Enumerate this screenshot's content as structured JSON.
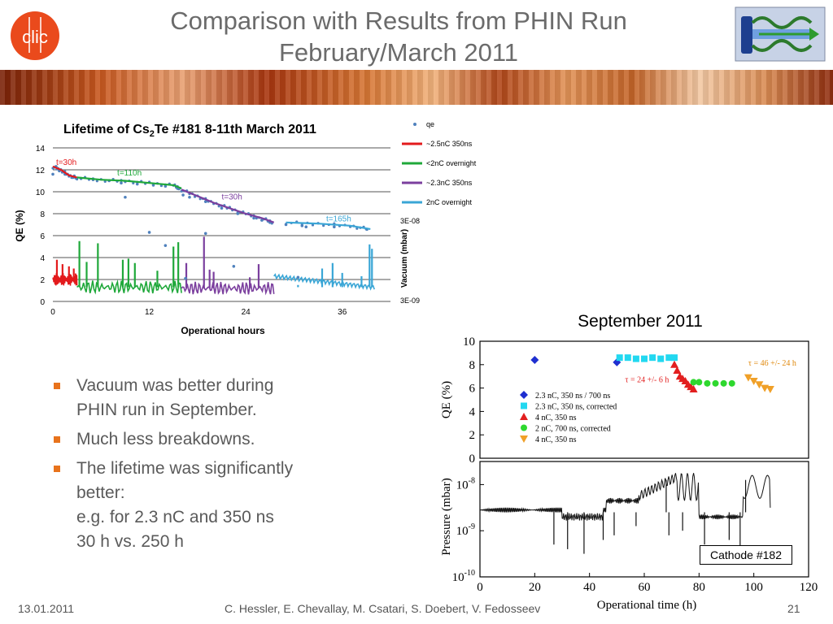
{
  "slide": {
    "title_line1": "Comparison with Results from PHIN Run",
    "title_line2": "February/March 2011",
    "logo_text": "clic",
    "date": "13.01.2011",
    "authors": "C. Hessler, E. Chevallay, M. Csatari, S. Doebert, V. Fedosseev",
    "page": "21",
    "september_label": "September 2011",
    "cathode_label": "Cathode #182"
  },
  "bullets": [
    {
      "lines": [
        "Vacuum was better during",
        "PHIN run in September."
      ]
    },
    {
      "lines": [
        "Much less breakdowns."
      ]
    },
    {
      "lines": [
        "The lifetime was significantly",
        "better:",
        "e.g. for 2.3 nC and 350 ns",
        "30 h vs. 250 h"
      ]
    }
  ],
  "colors": {
    "orange_accent": "#e8731c",
    "title_grey": "#6b6b6b",
    "qe_blue": "#4f81bd",
    "red": "#e31a1c",
    "green": "#1fa83a",
    "purple": "#7b3f9e",
    "cyan": "#3aa6d6"
  },
  "chart_data": [
    {
      "type": "line",
      "title_prefix": "Lifetime of Cs",
      "title_sub": "2",
      "title_suffix": "Te #181 8-11th March 2011",
      "xlabel": "Operational hours",
      "ylabel": "QE (%)",
      "y2label": "Vacuum (mbar)",
      "xlim": [
        0,
        42
      ],
      "ylim": [
        0,
        14
      ],
      "x_ticks": [
        "0",
        "12",
        "24",
        "36"
      ],
      "y_ticks": [
        "0",
        "2",
        "4",
        "6",
        "8",
        "10",
        "12",
        "14"
      ],
      "y2_ticks": [
        "3E-08",
        "3E-09"
      ],
      "legend": [
        "qe",
        "~2.5nC 350ns",
        "<2nC overnight",
        "~2.3nC 350ns",
        "2nC overnight"
      ],
      "legend_position": "right",
      "annotations": [
        "t=30h",
        "t=110h",
        "t=30h",
        "t=165h"
      ],
      "series": [
        {
          "name": "qe",
          "points": [
            [
              0,
              11.6
            ],
            [
              0.4,
              12.3
            ],
            [
              0.8,
              11.9
            ],
            [
              1.5,
              11.6
            ],
            [
              2.5,
              11.3
            ],
            [
              3.5,
              11.2
            ],
            [
              5,
              11.1
            ],
            [
              7,
              11.0
            ],
            [
              8.5,
              10.8
            ],
            [
              9,
              9.5
            ],
            [
              10.5,
              10.7
            ],
            [
              12.5,
              10.6
            ],
            [
              14,
              10.5
            ],
            [
              15.5,
              10.3
            ],
            [
              16.2,
              9.7
            ],
            [
              17,
              9.5
            ],
            [
              19,
              9.1
            ],
            [
              21,
              8.5
            ],
            [
              23,
              8.0
            ],
            [
              25,
              7.6
            ],
            [
              26,
              7.4
            ],
            [
              27,
              7.2
            ],
            [
              29,
              7.0
            ],
            [
              31,
              6.9
            ],
            [
              35,
              6.8
            ],
            [
              39,
              6.6
            ],
            [
              12,
              6.3
            ],
            [
              14,
              5.1
            ],
            [
              16.5,
              2.1
            ],
            [
              19,
              6.2
            ],
            [
              22.5,
              3.2
            ],
            [
              30.5,
              2.2
            ],
            [
              31.5,
              6.8
            ]
          ]
        },
        {
          "name": "~2.5nC 350ns",
          "points": [
            [
              0,
              12.3
            ],
            [
              1,
              12.0
            ],
            [
              2,
              11.5
            ],
            [
              3,
              11.3
            ]
          ]
        },
        {
          "name": "<2nC overnight",
          "points": [
            [
              3,
              11.3
            ],
            [
              6,
              11.1
            ],
            [
              9,
              11.0
            ],
            [
              12,
              10.8
            ],
            [
              15,
              10.6
            ],
            [
              16,
              10.3
            ]
          ]
        },
        {
          "name": "~2.3nC 350ns",
          "points": [
            [
              16,
              10.2
            ],
            [
              18,
              9.6
            ],
            [
              20,
              9.0
            ],
            [
              22,
              8.5
            ],
            [
              24,
              8.0
            ],
            [
              26,
              7.6
            ],
            [
              27.5,
              7.2
            ]
          ]
        },
        {
          "name": "2nC overnight",
          "points": [
            [
              29,
              7.2
            ],
            [
              33,
              7.1
            ],
            [
              37,
              6.9
            ],
            [
              39.5,
              6.6
            ]
          ]
        }
      ]
    },
    {
      "type": "scatter",
      "xlabel": "Operational time (h)",
      "ylabel_top": "QE (%)",
      "ylabel_bottom": "Pressure (mbar)",
      "xlim": [
        0,
        120
      ],
      "ylim_top": [
        0,
        10
      ],
      "ylim_bottom_log": [
        -10,
        -7.5
      ],
      "x_ticks": [
        "0",
        "20",
        "40",
        "60",
        "80",
        "100",
        "120"
      ],
      "y_ticks_top": [
        "0",
        "2",
        "4",
        "6",
        "8",
        "10"
      ],
      "legend": [
        "2.3 nC, 350 ns / 700 ns",
        "2.3 nC, 350 ns, corrected",
        "4 nC, 350 ns",
        "2 nC, 700 ns, corrected",
        "4 nC, 350 ns"
      ],
      "legend_position": "lower-left",
      "annotations": [
        "τ = 24 +/- 6 h",
        "τ = 46 +/- 24 h"
      ],
      "series": [
        {
          "name": "2.3 nC, 350 ns / 700 ns",
          "marker": "diamond",
          "color": "#1f2fd0",
          "points": [
            [
              20,
              8.4
            ],
            [
              50,
              8.2
            ]
          ]
        },
        {
          "name": "2.3 nC, 350 ns, corrected",
          "marker": "square",
          "color": "#22d8f0",
          "points": [
            [
              51,
              8.6
            ],
            [
              54,
              8.6
            ],
            [
              57,
              8.5
            ],
            [
              60,
              8.5
            ],
            [
              63,
              8.6
            ],
            [
              66,
              8.5
            ],
            [
              69,
              8.6
            ],
            [
              71,
              8.6
            ]
          ]
        },
        {
          "name": "4 nC, 350 ns",
          "marker": "triangle",
          "color": "#e21f1f",
          "points": [
            [
              71,
              8.0
            ],
            [
              72,
              7.5
            ],
            [
              73,
              7.0
            ],
            [
              74,
              6.8
            ],
            [
              75,
              6.6
            ],
            [
              76,
              6.3
            ],
            [
              77,
              6.1
            ],
            [
              78,
              5.9
            ]
          ]
        },
        {
          "name": "2 nC, 700 ns, corrected",
          "marker": "circle",
          "color": "#2ed82e",
          "points": [
            [
              78,
              6.5
            ],
            [
              80,
              6.5
            ],
            [
              83,
              6.4
            ],
            [
              86,
              6.4
            ],
            [
              89,
              6.4
            ],
            [
              92,
              6.4
            ]
          ]
        },
        {
          "name": "4 nC, 350 ns",
          "marker": "triangle-down",
          "color": "#f0a028",
          "points": [
            [
              98,
              6.9
            ],
            [
              100,
              6.6
            ],
            [
              102,
              6.3
            ],
            [
              104,
              6.0
            ],
            [
              106,
              5.9
            ]
          ]
        }
      ]
    }
  ]
}
